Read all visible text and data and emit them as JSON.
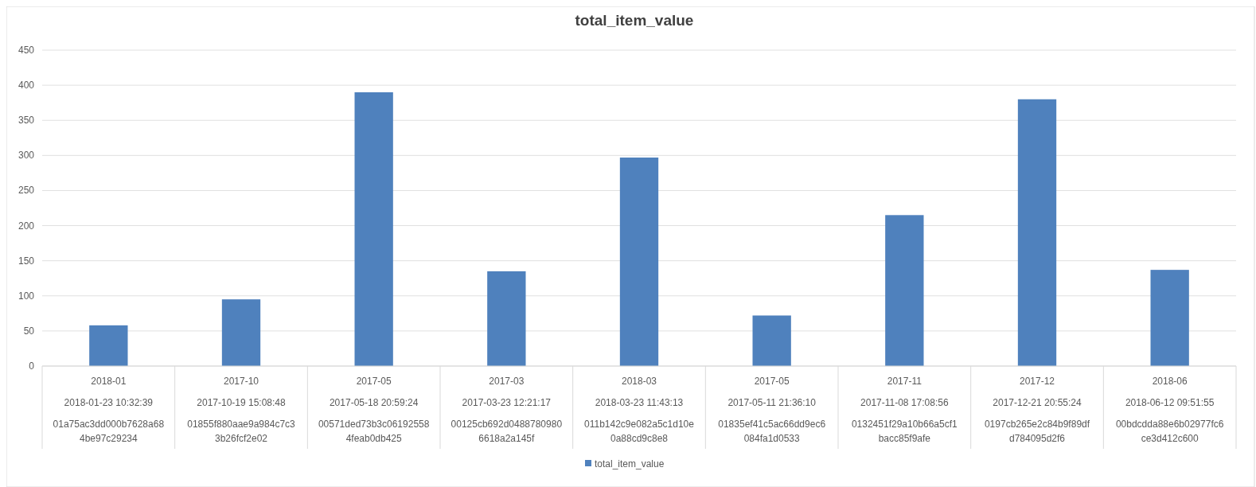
{
  "chart_data": {
    "type": "bar",
    "title": "total_item_value",
    "categories": [
      "2018-01\n2018-01-23 10:32:39\n01a75ac3dd000b7628a684be97c29234",
      "2017-10\n2017-10-19 15:08:48\n01855f880aae9a984c7c33b26fcf2e02",
      "2017-05\n2017-05-18 20:59:24\n00571ded73b3c061925584feab0db425",
      "2017-03\n2017-03-23 12:21:17\n00125cb692d04887809806618a2a145f",
      "2018-03\n2018-03-23 11:43:13\n011b142c9e082a5c1d10e0a88cd9c8e8",
      "2017-05\n2017-05-11 21:36:10\n01835ef41c5ac66dd9ec6084fa1d0533",
      "2017-11\n2017-11-08 17:08:56\n0132451f29a10b66a5cf1bacc85f9afe",
      "2017-12\n2017-12-21 20:55:24\n0197cb265e2c84b9f89dfd784095d2f6",
      "2018-06\n2018-06-12 09:51:55\n00bdcdda88e6b02977fc6ce3d412c600"
    ],
    "series": [
      {
        "name": "total_item_value",
        "color": "#4f81bd",
        "values": [
          58,
          95,
          390,
          135,
          297,
          72,
          215,
          380,
          137
        ]
      }
    ],
    "ylim": [
      0,
      450
    ],
    "yticks": [
      0,
      50,
      100,
      150,
      200,
      250,
      300,
      350,
      400,
      450
    ],
    "grid": "y",
    "legend": "bottom"
  }
}
